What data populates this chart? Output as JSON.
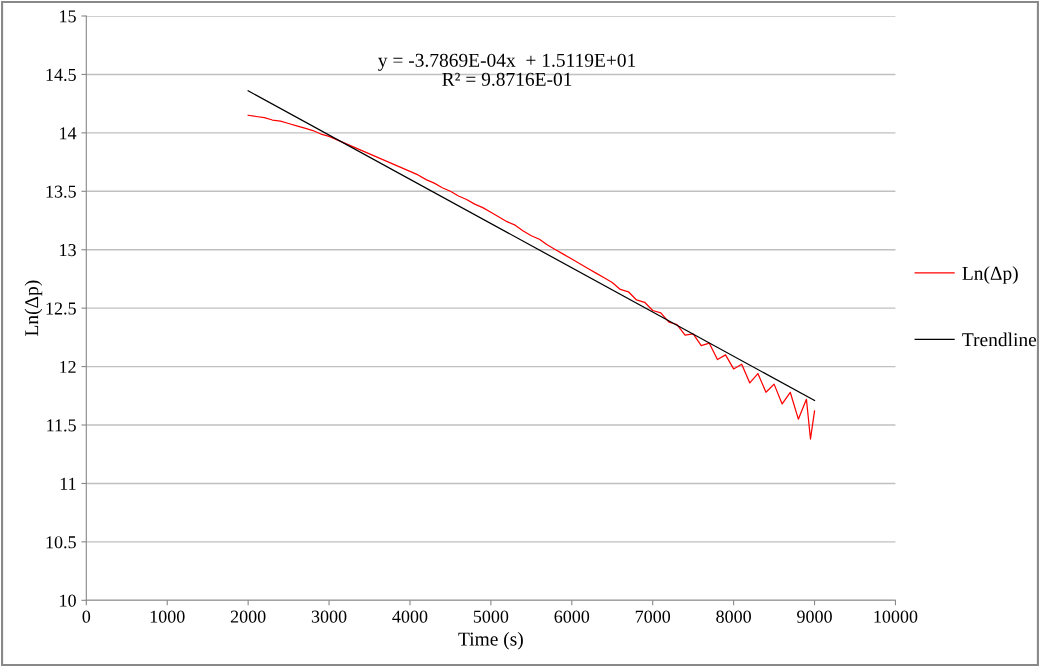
{
  "chart_data": {
    "type": "line",
    "xlabel": "Time (s)",
    "ylabel": "Ln(Δp)",
    "xlim": [
      0,
      10000
    ],
    "ylim": [
      10,
      15
    ],
    "xticks": [
      0,
      1000,
      2000,
      3000,
      4000,
      5000,
      6000,
      7000,
      8000,
      9000,
      10000
    ],
    "yticks": [
      10,
      10.5,
      11,
      11.5,
      12,
      12.5,
      13,
      13.5,
      14,
      14.5,
      15
    ],
    "grid": "y",
    "legend": "right",
    "marker": "none",
    "line_style": "solid",
    "annotations": [
      "y = -3.7869E-04x  + 1.5119E+01\nR² = 9.8716E-01"
    ],
    "series": [
      {
        "name": "Ln(Δp)",
        "color": "#ff0000",
        "x": [
          2000,
          2100,
          2200,
          2300,
          2400,
          2500,
          2600,
          2700,
          2800,
          2900,
          3000,
          3100,
          3200,
          3300,
          3400,
          3500,
          3600,
          3700,
          3800,
          3900,
          4000,
          4100,
          4200,
          4300,
          4400,
          4500,
          4600,
          4700,
          4800,
          4900,
          5000,
          5100,
          5200,
          5300,
          5400,
          5500,
          5600,
          5700,
          5800,
          5900,
          6000,
          6100,
          6200,
          6300,
          6400,
          6500,
          6600,
          6700,
          6800,
          6900,
          7000,
          7100,
          7200,
          7300,
          7400,
          7500,
          7600,
          7700,
          7800,
          7900,
          8000,
          8100,
          8200,
          8300,
          8400,
          8500,
          8600,
          8700,
          8800,
          8900,
          8950,
          9000
        ],
        "values": [
          14.15,
          14.14,
          14.13,
          14.11,
          14.1,
          14.08,
          14.06,
          14.04,
          14.02,
          13.99,
          13.97,
          13.94,
          13.91,
          13.88,
          13.85,
          13.82,
          13.79,
          13.76,
          13.73,
          13.7,
          13.67,
          13.64,
          13.6,
          13.57,
          13.53,
          13.5,
          13.46,
          13.43,
          13.39,
          13.36,
          13.32,
          13.28,
          13.24,
          13.21,
          13.16,
          13.12,
          13.09,
          13.04,
          13.0,
          12.96,
          12.92,
          12.88,
          12.84,
          12.8,
          12.76,
          12.72,
          12.66,
          12.64,
          12.57,
          12.55,
          12.48,
          12.46,
          12.38,
          12.36,
          12.27,
          12.28,
          12.18,
          12.2,
          12.06,
          12.1,
          11.98,
          12.02,
          11.86,
          11.94,
          11.78,
          11.85,
          11.68,
          11.78,
          11.55,
          11.72,
          11.38,
          11.62
        ]
      },
      {
        "name": "Trendline",
        "color": "#000000",
        "x": [
          2000,
          9000
        ],
        "values": [
          14.36,
          11.71
        ]
      }
    ]
  }
}
